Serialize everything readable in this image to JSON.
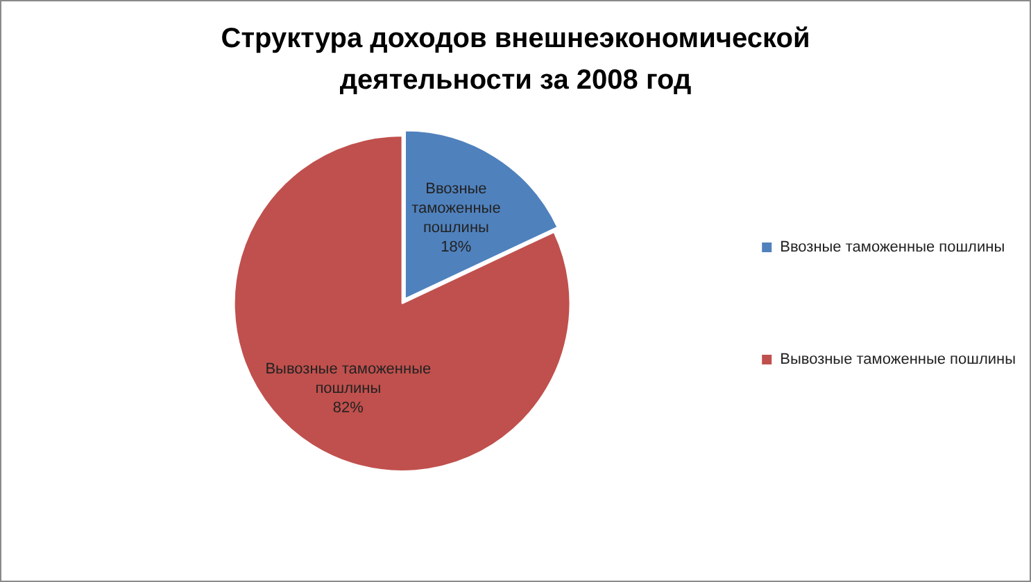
{
  "chart_data": {
    "type": "pie",
    "title": "Структура доходов внешнеэкономической деятельности за 2008 год",
    "categories": [
      "Ввозные таможенные пошлины",
      "Вывозные таможенные пошлины"
    ],
    "values": [
      18,
      82
    ],
    "colors": [
      "#4f81bd",
      "#c0504d"
    ],
    "value_labels": [
      "18%",
      "82%"
    ],
    "legend": "right"
  }
}
